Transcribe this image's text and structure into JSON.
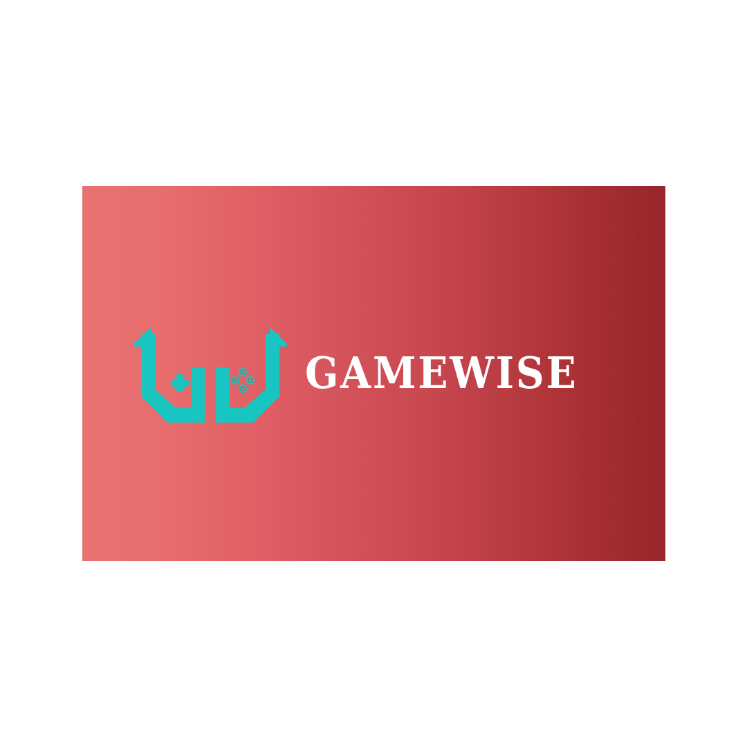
{
  "brand": {
    "name": "GAMEWISE",
    "logo_icon": "gamepad-arrows-logo-icon",
    "accent_color": "#18c5c0",
    "text_color": "#ffffff",
    "gradient_start": "#e87272",
    "gradient_end": "#97252a"
  }
}
